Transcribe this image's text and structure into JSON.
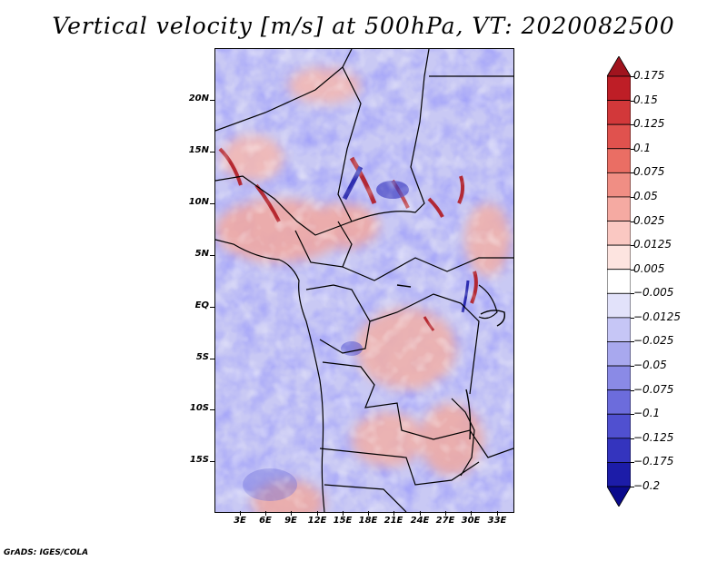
{
  "title": "Vertical velocity [m/s] at 500hPa, VT: 2020082500",
  "credit": "GrADS: IGES/COLA",
  "map": {
    "lat_ticks": [
      "20N",
      "15N",
      "10N",
      "5N",
      "EQ",
      "5S",
      "10S",
      "15S"
    ],
    "lon_ticks": [
      "3E",
      "6E",
      "9E",
      "12E",
      "15E",
      "18E",
      "21E",
      "24E",
      "27E",
      "30E",
      "33E"
    ]
  },
  "colorbar": {
    "labels": [
      "0.175",
      "0.15",
      "0.125",
      "0.1",
      "0.075",
      "0.05",
      "0.025",
      "0.0125",
      "0.005",
      "−0.005",
      "−0.0125",
      "−0.025",
      "−0.05",
      "−0.075",
      "−0.1",
      "−0.125",
      "−0.175",
      "−0.2"
    ],
    "colors": [
      "#a0141e",
      "#be1e26",
      "#d2383a",
      "#e0524e",
      "#ea6e64",
      "#f08e84",
      "#f5aaa2",
      "#fac8c2",
      "#fde4e0",
      "#ffffff",
      "#e2e2fa",
      "#c6c6f6",
      "#a8a8ee",
      "#8a8ae6",
      "#6c6cdc",
      "#5050d0",
      "#3434be",
      "#1c1ca8",
      "#0a0a8c"
    ]
  }
}
